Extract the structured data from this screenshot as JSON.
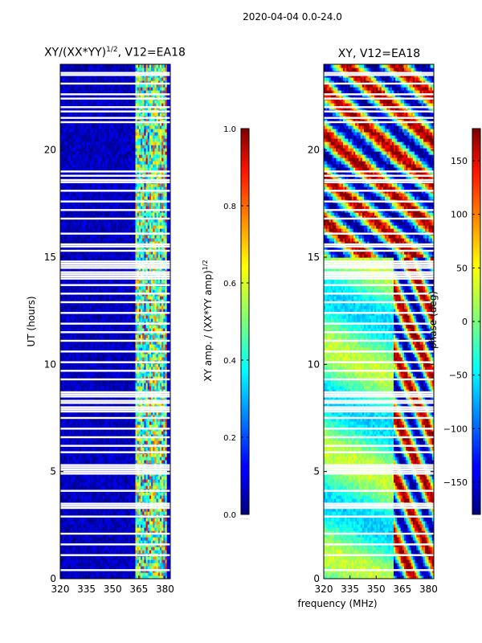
{
  "figure": {
    "suptitle": "2020-04-04 0.0-24.0",
    "shared_xlabel": "frequency (MHz)"
  },
  "colormap": "jet",
  "chart_data": [
    {
      "type": "heatmap",
      "title": "XY/(XX*YY)^1/2, V12=EA18",
      "title_main": "XY/(XX*YY)",
      "title_sup": "1/2",
      "title_tail": ", V12=EA18",
      "xlabel": "",
      "ylabel": "UT (hours)",
      "xlim": [
        320,
        383
      ],
      "ylim": [
        0,
        24
      ],
      "xticks": [
        320,
        335,
        350,
        365,
        380
      ],
      "yticks": [
        0,
        5,
        10,
        15,
        20
      ],
      "colorbar": {
        "label": "XY amp. / (XX*YY amp)^1/2",
        "label_main": "XY amp. / (XX*YY amp)",
        "label_sup": "1/2",
        "range": [
          0.0,
          1.0
        ],
        "ticks": [
          "0.0",
          "0.2",
          "0.4",
          "0.6",
          "0.8",
          "1.0"
        ],
        "tick_values": [
          0.0,
          0.2,
          0.4,
          0.6,
          0.8,
          1.0
        ],
        "footer": "......"
      },
      "flagged_ut_hours": [
        0.4,
        1.1,
        1.6,
        2.1,
        2.9,
        3.3,
        3.4,
        3.5,
        4.1,
        4.9,
        5.0,
        5.1,
        5.2,
        5.3,
        5.9,
        6.2,
        6.6,
        7.0,
        7.5,
        7.8,
        7.9,
        8.0,
        8.2,
        8.3,
        8.5,
        8.6,
        8.7,
        9.3,
        9.7,
        10.1,
        10.6,
        11.1,
        11.5,
        11.9,
        12.4,
        12.9,
        13.3,
        13.7,
        14.0,
        14.1,
        14.2,
        14.3,
        14.5,
        14.6,
        14.7,
        14.8,
        15.3,
        15.5,
        15.6,
        16.1,
        16.8,
        17.2,
        17.6,
        18.1,
        18.5,
        18.6,
        18.8,
        19.0,
        21.3,
        21.5,
        21.8,
        22.0,
        22.4,
        22.6,
        23.1,
        23.5,
        23.6
      ]
    },
    {
      "type": "heatmap",
      "title": "XY, V12=EA18",
      "xlabel": "frequency (MHz)",
      "ylabel": "",
      "xlim": [
        320,
        383
      ],
      "ylim": [
        0,
        24
      ],
      "xticks": [
        320,
        335,
        350,
        365,
        380
      ],
      "yticks": [
        0,
        5,
        10,
        15,
        20
      ],
      "colorbar": {
        "label": "phase (deg)",
        "range": [
          -180,
          180
        ],
        "ticks": [
          "150",
          "100",
          "50",
          "0",
          "−50",
          "−100",
          "−150"
        ],
        "tick_values": [
          150,
          100,
          50,
          0,
          -50,
          -100,
          -150
        ],
        "footer": "......"
      },
      "flagged_ut_hours": [
        0.4,
        1.1,
        1.6,
        2.1,
        2.9,
        3.3,
        3.4,
        3.5,
        4.1,
        4.9,
        5.0,
        5.1,
        5.2,
        5.3,
        5.9,
        6.2,
        6.6,
        7.0,
        7.5,
        7.8,
        7.9,
        8.0,
        8.2,
        8.3,
        8.5,
        8.6,
        8.7,
        9.3,
        9.7,
        10.1,
        10.6,
        11.1,
        11.5,
        11.9,
        12.4,
        12.9,
        13.3,
        13.7,
        14.0,
        14.1,
        14.2,
        14.3,
        14.5,
        14.6,
        14.7,
        14.8,
        15.3,
        15.5,
        15.6,
        16.1,
        16.8,
        17.2,
        17.6,
        18.1,
        18.5,
        18.6,
        18.8,
        19.0,
        21.3,
        21.5,
        21.8,
        22.0,
        22.4,
        22.6,
        23.1,
        23.5,
        23.6
      ]
    }
  ]
}
